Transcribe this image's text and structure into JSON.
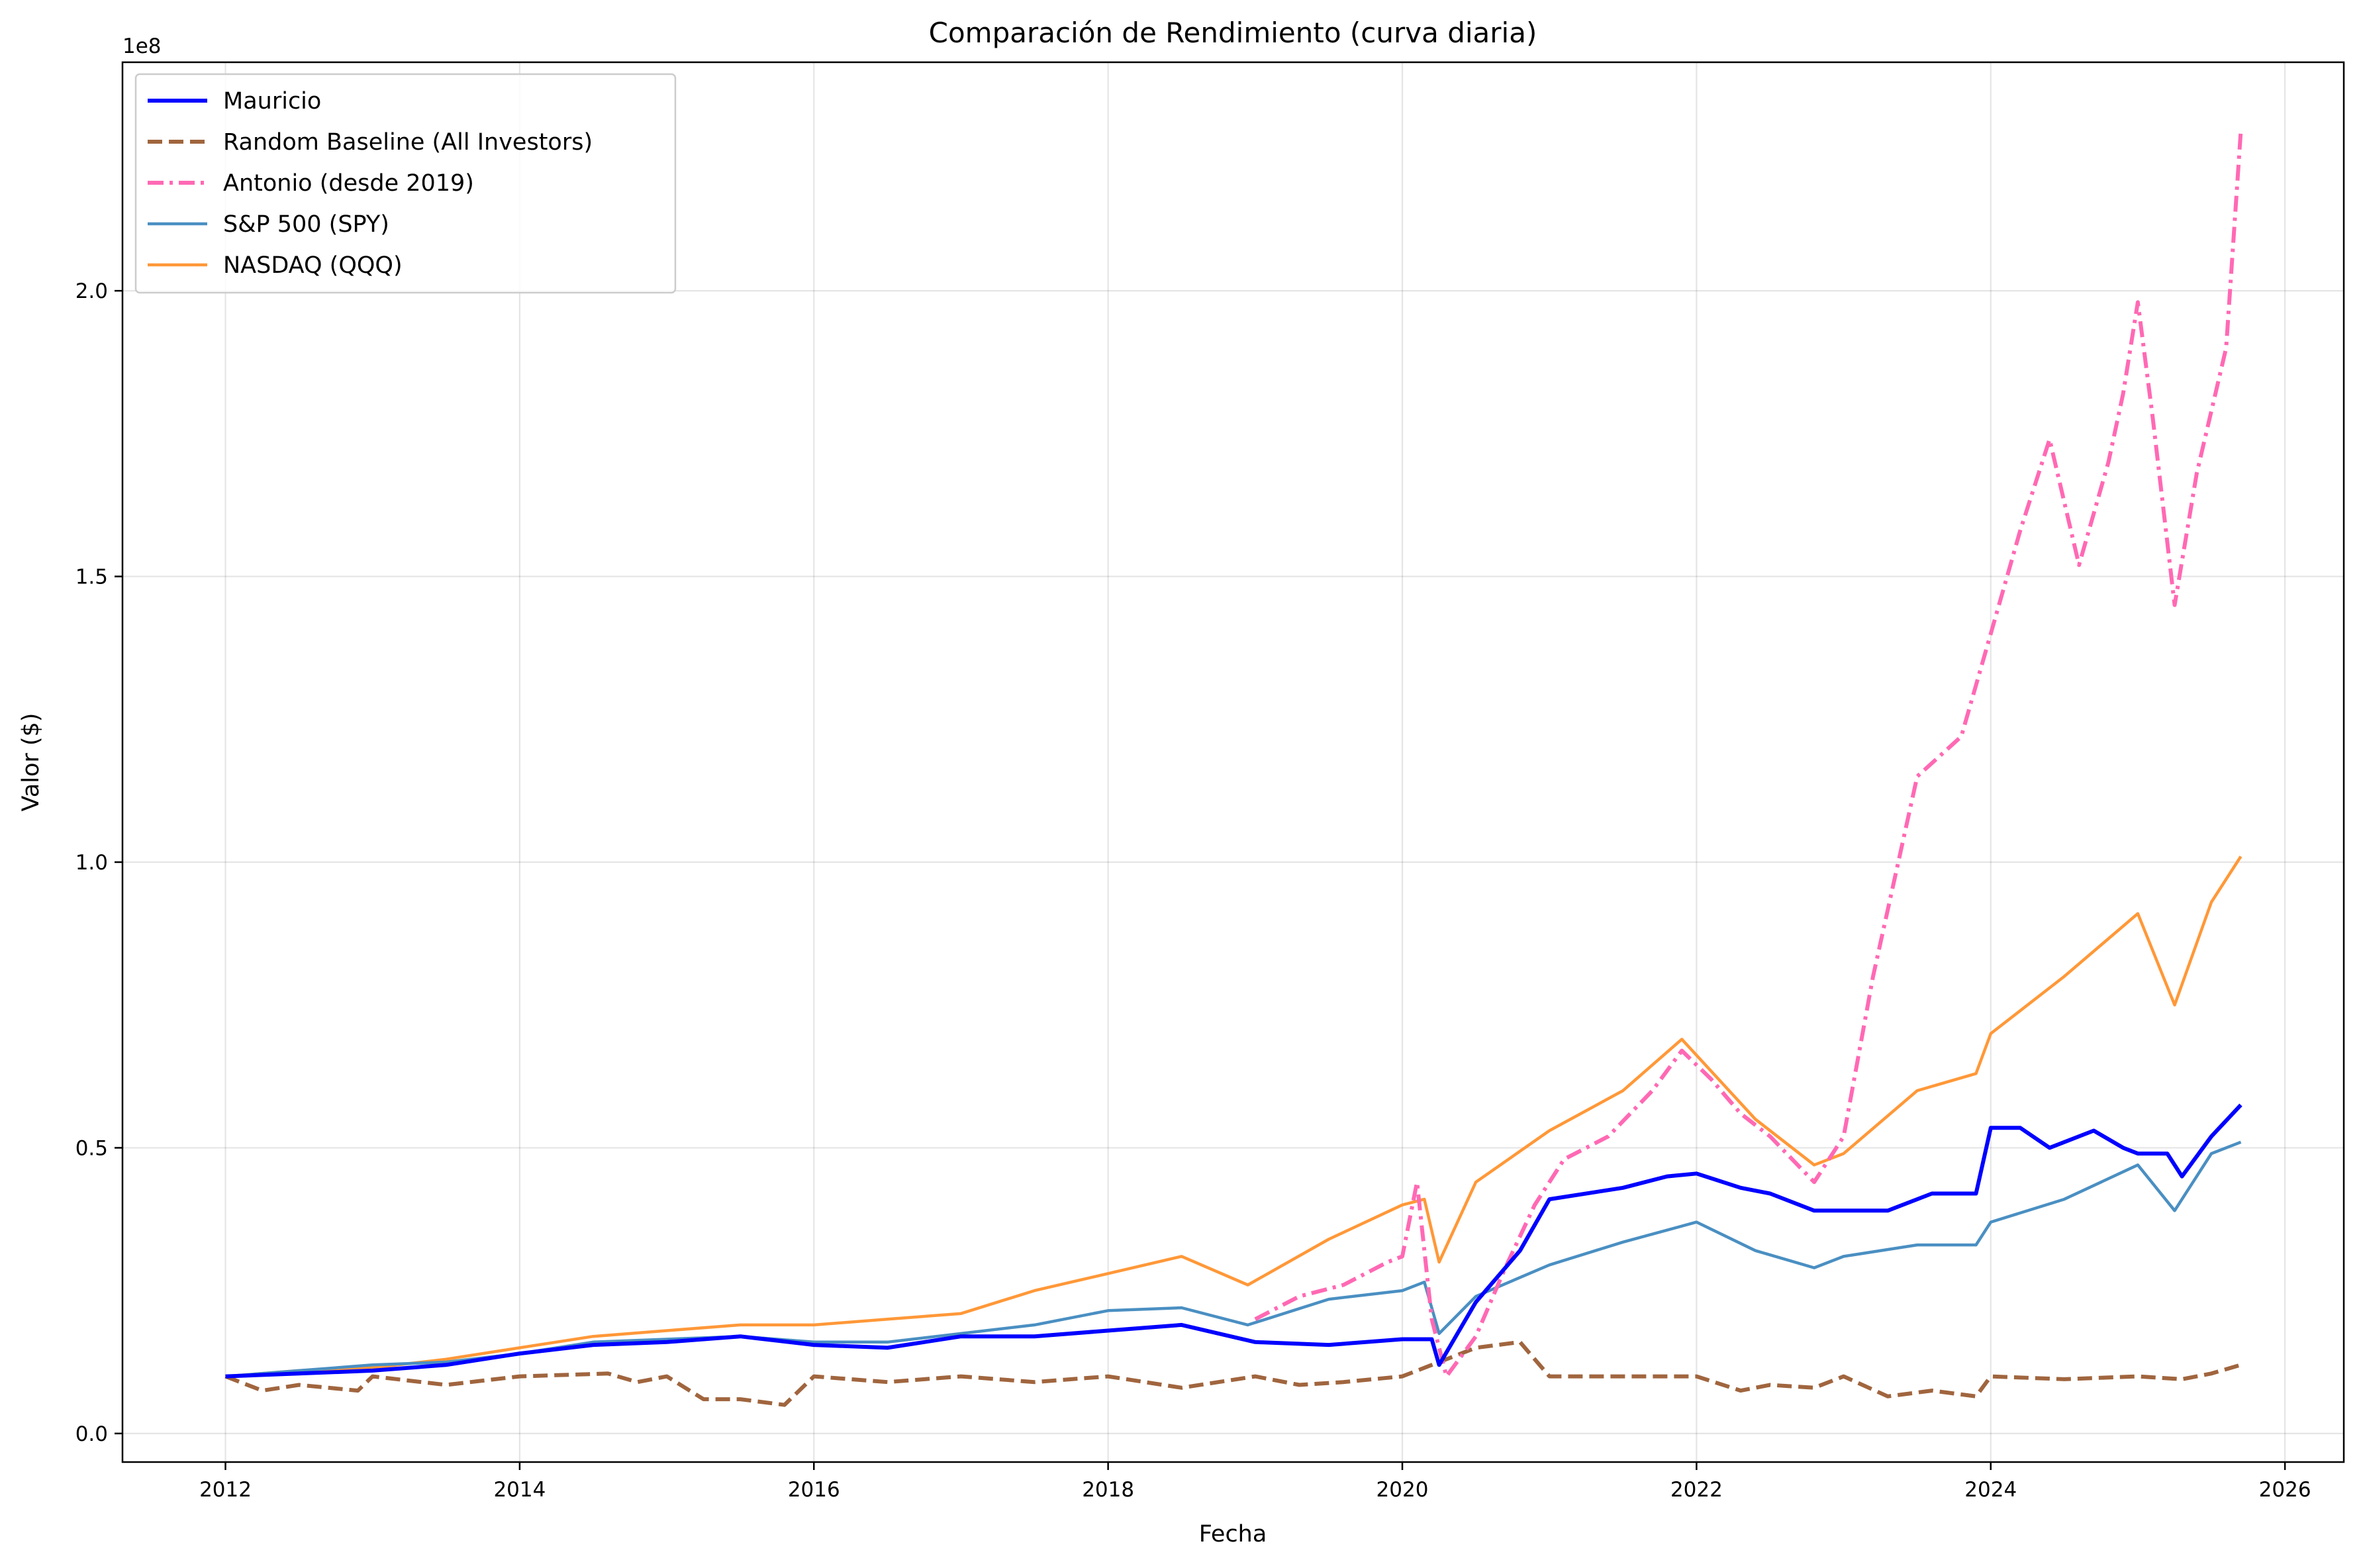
{
  "chart_data": {
    "type": "line",
    "title": "Comparación de Rendimiento (curva diaria)",
    "xlabel": "Fecha",
    "ylabel": "Valor ($)",
    "y_offset_label": "1e8",
    "xlim": [
      2011.3,
      2026.4
    ],
    "ylim": [
      -0.05,
      2.4
    ],
    "x_ticks": [
      2012,
      2014,
      2016,
      2018,
      2020,
      2022,
      2024,
      2026
    ],
    "x_tick_labels": [
      "2012",
      "2014",
      "2016",
      "2018",
      "2020",
      "2022",
      "2024",
      "2026"
    ],
    "y_ticks": [
      0.0,
      0.5,
      1.0,
      1.5,
      2.0
    ],
    "y_tick_labels": [
      "0.0",
      "0.5",
      "1.0",
      "1.5",
      "2.0"
    ],
    "grid": true,
    "legend_position": "top-left",
    "series": [
      {
        "name": "Mauricio",
        "color": "#0000ff",
        "style": "solid",
        "x": [
          2012.0,
          2012.5,
          2013.0,
          2013.5,
          2014.0,
          2014.5,
          2015.0,
          2015.5,
          2016.0,
          2016.5,
          2017.0,
          2017.5,
          2018.0,
          2018.5,
          2019.0,
          2019.5,
          2020.0,
          2020.2,
          2020.25,
          2020.5,
          2020.8,
          2021.0,
          2021.5,
          2021.8,
          2022.0,
          2022.3,
          2022.5,
          2022.8,
          2023.0,
          2023.3,
          2023.6,
          2023.9,
          2024.0,
          2024.2,
          2024.4,
          2024.7,
          2024.9,
          2025.0,
          2025.2,
          2025.3,
          2025.5,
          2025.7
        ],
        "y": [
          0.1,
          0.105,
          0.11,
          0.12,
          0.14,
          0.155,
          0.16,
          0.17,
          0.155,
          0.15,
          0.17,
          0.17,
          0.18,
          0.19,
          0.16,
          0.155,
          0.165,
          0.165,
          0.12,
          0.23,
          0.32,
          0.41,
          0.43,
          0.45,
          0.455,
          0.43,
          0.42,
          0.39,
          0.39,
          0.39,
          0.42,
          0.42,
          0.535,
          0.535,
          0.5,
          0.53,
          0.5,
          0.49,
          0.49,
          0.45,
          0.52,
          0.575
        ]
      },
      {
        "name": "Random Baseline (All Investors)",
        "color": "#a0653e",
        "style": "dashed",
        "x": [
          2012.0,
          2012.25,
          2012.5,
          2012.9,
          2013.0,
          2013.5,
          2014.0,
          2014.6,
          2014.8,
          2015.0,
          2015.25,
          2015.5,
          2015.8,
          2016.0,
          2016.5,
          2017.0,
          2017.5,
          2018.0,
          2018.5,
          2019.0,
          2019.3,
          2019.6,
          2020.0,
          2020.2,
          2020.5,
          2020.8,
          2021.0,
          2021.5,
          2022.0,
          2022.3,
          2022.5,
          2022.8,
          2023.0,
          2023.3,
          2023.6,
          2023.9,
          2024.0,
          2024.5,
          2025.0,
          2025.3,
          2025.5,
          2025.7
        ],
        "y": [
          0.1,
          0.075,
          0.085,
          0.075,
          0.1,
          0.085,
          0.1,
          0.105,
          0.09,
          0.1,
          0.06,
          0.06,
          0.05,
          0.1,
          0.09,
          0.1,
          0.09,
          0.1,
          0.08,
          0.1,
          0.085,
          0.09,
          0.1,
          0.12,
          0.15,
          0.16,
          0.1,
          0.1,
          0.1,
          0.075,
          0.085,
          0.08,
          0.1,
          0.065,
          0.075,
          0.065,
          0.1,
          0.095,
          0.1,
          0.095,
          0.105,
          0.12
        ]
      },
      {
        "name": "Antonio (desde 2019)",
        "color": "#ff69b4",
        "style": "dashdot",
        "x": [
          2019.0,
          2019.3,
          2019.6,
          2019.9,
          2020.0,
          2020.1,
          2020.2,
          2020.3,
          2020.5,
          2020.7,
          2020.9,
          2021.1,
          2021.4,
          2021.7,
          2021.9,
          2022.1,
          2022.3,
          2022.5,
          2022.8,
          2023.0,
          2023.2,
          2023.5,
          2023.8,
          2024.0,
          2024.2,
          2024.4,
          2024.6,
          2024.8,
          2024.9,
          2025.0,
          2025.1,
          2025.25,
          2025.4,
          2025.6,
          2025.7
        ],
        "y": [
          0.2,
          0.24,
          0.26,
          0.3,
          0.31,
          0.44,
          0.2,
          0.1,
          0.17,
          0.29,
          0.4,
          0.48,
          0.52,
          0.6,
          0.67,
          0.62,
          0.56,
          0.52,
          0.44,
          0.52,
          0.8,
          1.15,
          1.22,
          1.4,
          1.58,
          1.74,
          1.52,
          1.7,
          1.82,
          1.98,
          1.78,
          1.45,
          1.68,
          1.9,
          2.28
        ]
      },
      {
        "name": "S&P 500 (SPY)",
        "color": "#4a8fc2",
        "style": "solid",
        "x": [
          2012.0,
          2012.5,
          2013.0,
          2013.5,
          2014.0,
          2014.5,
          2015.0,
          2015.5,
          2016.0,
          2016.5,
          2017.0,
          2017.5,
          2018.0,
          2018.5,
          2018.95,
          2019.5,
          2020.0,
          2020.15,
          2020.25,
          2020.5,
          2021.0,
          2021.5,
          2022.0,
          2022.4,
          2022.8,
          2023.0,
          2023.5,
          2023.9,
          2024.0,
          2024.5,
          2025.0,
          2025.25,
          2025.5,
          2025.7
        ],
        "y": [
          0.1,
          0.11,
          0.12,
          0.125,
          0.14,
          0.16,
          0.165,
          0.17,
          0.16,
          0.16,
          0.175,
          0.19,
          0.215,
          0.22,
          0.19,
          0.235,
          0.25,
          0.265,
          0.175,
          0.24,
          0.295,
          0.335,
          0.37,
          0.32,
          0.29,
          0.31,
          0.33,
          0.33,
          0.37,
          0.41,
          0.47,
          0.39,
          0.49,
          0.51
        ]
      },
      {
        "name": "NASDAQ (QQQ)",
        "color": "#ff9838",
        "style": "solid",
        "x": [
          2012.0,
          2012.5,
          2013.0,
          2013.5,
          2014.0,
          2014.5,
          2015.0,
          2015.5,
          2016.0,
          2016.5,
          2017.0,
          2017.5,
          2018.0,
          2018.5,
          2018.95,
          2019.5,
          2020.0,
          2020.15,
          2020.25,
          2020.5,
          2021.0,
          2021.5,
          2021.9,
          2022.4,
          2022.8,
          2023.0,
          2023.5,
          2023.9,
          2024.0,
          2024.5,
          2025.0,
          2025.25,
          2025.5,
          2025.7
        ],
        "y": [
          0.1,
          0.11,
          0.115,
          0.13,
          0.15,
          0.17,
          0.18,
          0.19,
          0.19,
          0.2,
          0.21,
          0.25,
          0.28,
          0.31,
          0.26,
          0.34,
          0.4,
          0.41,
          0.3,
          0.44,
          0.53,
          0.6,
          0.69,
          0.55,
          0.47,
          0.49,
          0.6,
          0.63,
          0.7,
          0.8,
          0.91,
          0.75,
          0.93,
          1.01
        ]
      }
    ]
  }
}
